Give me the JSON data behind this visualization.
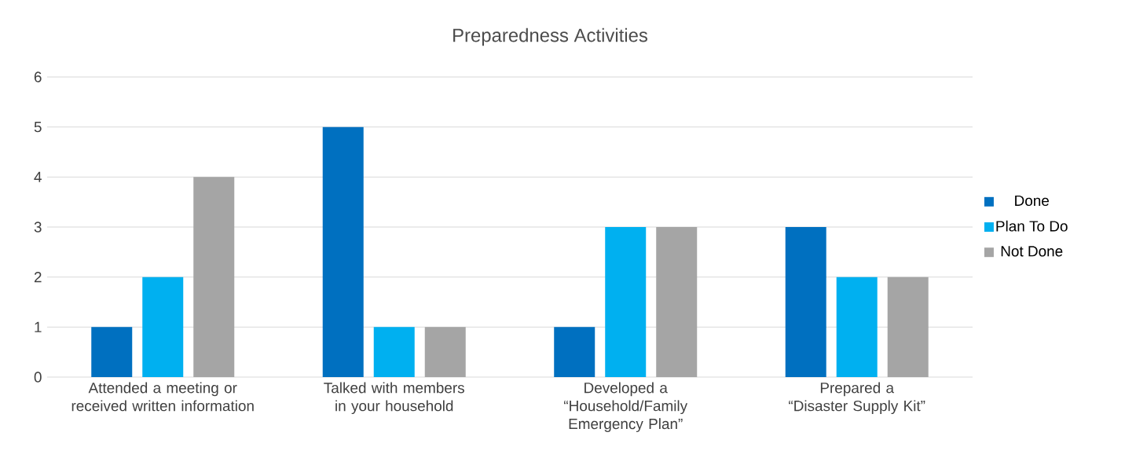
{
  "chart_data": {
    "type": "bar",
    "title": "Preparedness Activities",
    "categories": [
      "Attended a meeting or received written information",
      "Talked with members in your household",
      "Developed a “Household/Family Emergency Plan”",
      "Prepared a “Disaster Supply Kit”"
    ],
    "series": [
      {
        "name": "Done",
        "color": "#0070c0",
        "values": [
          1,
          5,
          1,
          3
        ]
      },
      {
        "name": "Plan To Do",
        "color": "#00b0f0",
        "values": [
          2,
          1,
          3,
          2
        ]
      },
      {
        "name": "Not Done",
        "color": "#a5a5a5",
        "values": [
          4,
          1,
          3,
          2
        ]
      }
    ],
    "ylim": [
      0,
      6
    ],
    "yticks": [
      0,
      1,
      2,
      3,
      4,
      5,
      6
    ],
    "grid": "y",
    "legend": "right"
  }
}
